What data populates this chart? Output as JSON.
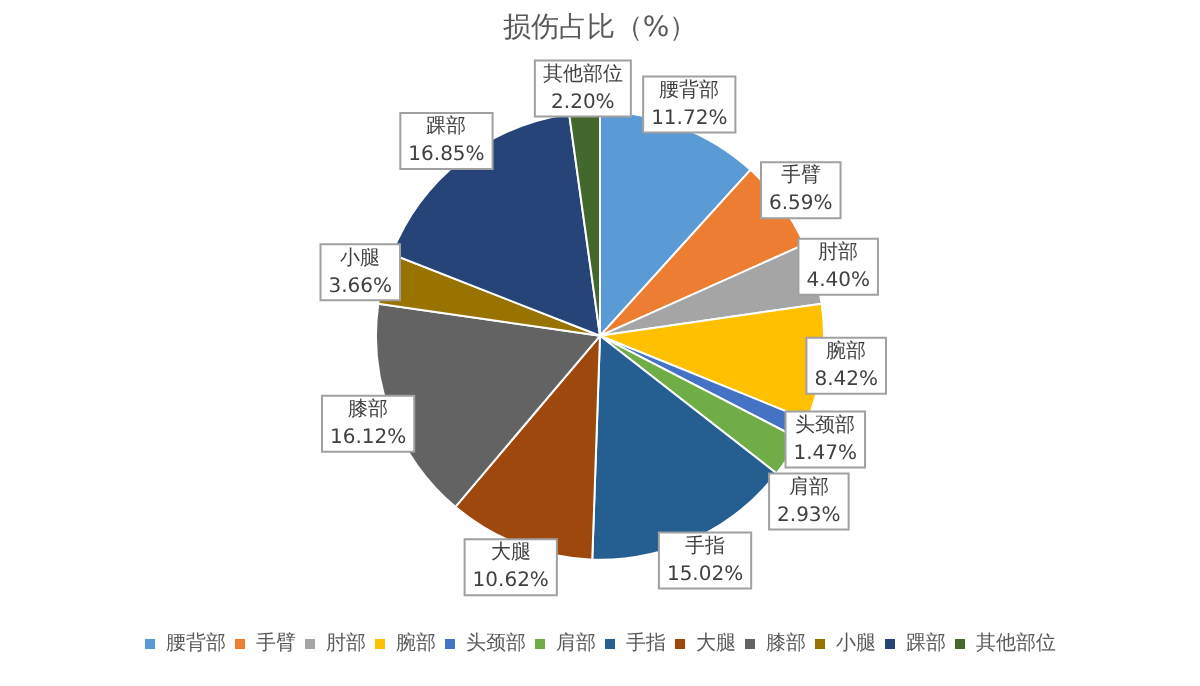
{
  "chart_data": {
    "type": "pie",
    "title": "损伤占比（%）",
    "categories": [
      "腰背部",
      "手臂",
      "肘部",
      "腕部",
      "头颈部",
      "肩部",
      "手指",
      "大腿",
      "膝部",
      "小腿",
      "踝部",
      "其他部位"
    ],
    "values": [
      11.72,
      6.59,
      4.4,
      8.42,
      1.47,
      2.93,
      15.02,
      10.62,
      16.12,
      3.66,
      16.85,
      2.2
    ],
    "value_labels": [
      "11.72%",
      "6.59%",
      "4.40%",
      "8.42%",
      "1.47%",
      "2.93%",
      "15.02%",
      "10.62%",
      "16.12%",
      "3.66%",
      "16.85%",
      "2.20%"
    ],
    "colors": [
      "#5b9bd5",
      "#ed7d31",
      "#a5a5a5",
      "#ffc000",
      "#4472c4",
      "#70ad47",
      "#255e91",
      "#9e480e",
      "#636363",
      "#997300",
      "#264478",
      "#43682b"
    ],
    "legend": "bottom"
  }
}
